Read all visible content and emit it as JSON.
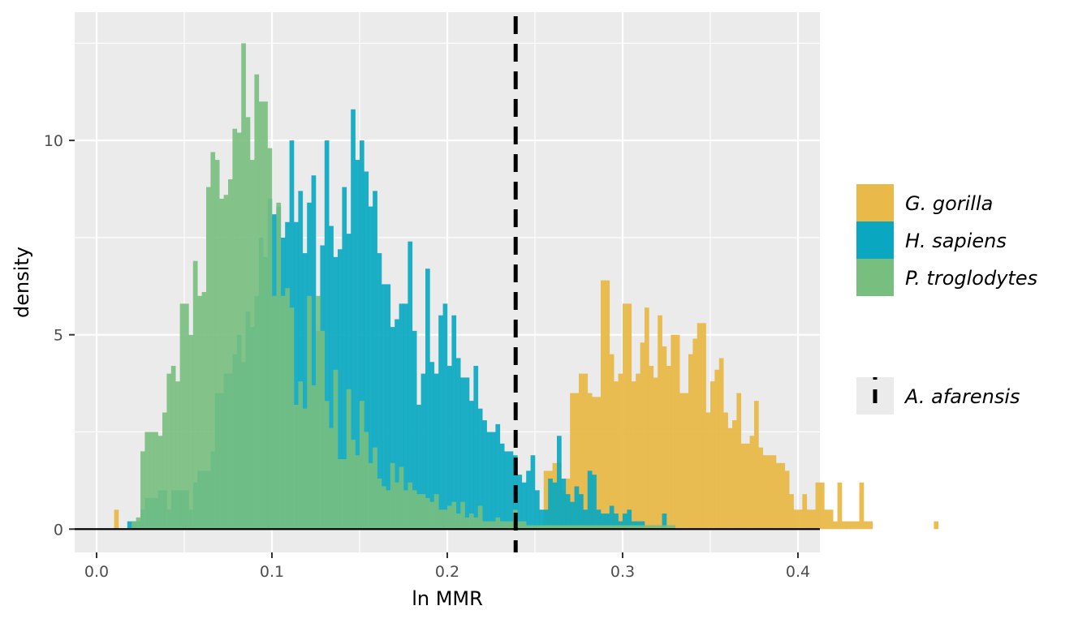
{
  "chart_data": {
    "type": "histogram",
    "xlabel": "ln MMR",
    "ylabel": "density",
    "xlim": [
      -0.0125,
      0.4125
    ],
    "ylim": [
      -0.6,
      13.3
    ],
    "x_ticks": [
      0.0,
      0.1,
      0.2,
      0.3,
      0.4
    ],
    "x_tick_labels": [
      "0.0",
      "0.1",
      "0.2",
      "0.3",
      "0.4"
    ],
    "y_ticks": [
      0,
      5,
      10
    ],
    "y_tick_labels": [
      "0",
      "5",
      "10"
    ],
    "grid": true,
    "legend_position": "right",
    "bin_start": 0.01,
    "bin_width": 0.0025,
    "series": [
      {
        "name": "G. gorilla",
        "color": "#E9B949",
        "values": [
          0.5,
          0,
          0,
          0,
          0,
          0,
          0,
          0,
          0,
          0,
          0,
          0,
          0,
          0,
          0,
          0,
          0,
          0,
          0,
          0,
          0,
          0,
          0,
          0,
          0,
          0,
          0,
          0,
          0,
          0,
          0,
          0,
          0,
          0,
          0,
          0,
          0,
          0,
          0,
          0,
          0,
          0,
          0,
          0,
          0,
          0,
          0,
          0,
          0,
          0,
          0,
          0,
          0,
          0,
          0,
          0,
          0,
          0,
          0,
          0,
          0,
          0,
          0,
          0,
          0,
          0,
          0,
          0,
          0,
          0,
          0,
          0,
          0,
          0,
          0,
          0,
          0,
          0,
          0,
          0,
          0,
          0,
          0,
          0,
          0,
          0,
          0,
          0,
          0,
          0,
          0,
          0,
          0,
          0,
          0,
          0,
          0,
          0,
          1.5,
          1.5,
          1.7,
          1.7,
          1,
          1.3,
          3.5,
          3.5,
          4,
          4,
          3.5,
          3.4,
          3.4,
          6.4,
          6.4,
          4.5,
          3.8,
          4,
          5.8,
          5.8,
          3.8,
          4,
          4.8,
          5.7,
          4.2,
          3.9,
          5.5,
          4.7,
          4.2,
          5,
          5,
          3.5,
          3.5,
          4.5,
          4.9,
          5.3,
          5.3,
          3,
          3.8,
          4.1,
          4.4,
          3,
          2.6,
          2.8,
          3.5,
          2.2,
          2.2,
          2.4,
          3.3,
          2.1,
          1.9,
          1.9,
          1.9,
          1.7,
          1.7,
          1.5,
          0.9,
          0.5,
          0.5,
          0.9,
          0.5,
          0.5,
          1.2,
          1.2,
          0.5,
          0.5,
          0.2,
          1.2,
          0.2,
          0.2,
          0.2,
          0.2,
          1.2,
          0.2,
          0.2,
          0,
          0,
          0,
          0,
          0,
          0,
          0,
          0,
          0,
          0,
          0,
          0,
          0,
          0,
          0.2
        ]
      },
      {
        "name": "H. sapiens",
        "color": "#0AA8C0",
        "values": [
          0,
          0,
          0,
          0.2,
          0.2,
          0.2,
          0.5,
          0.8,
          0.8,
          0.8,
          1,
          1,
          0.5,
          1,
          1,
          1,
          1,
          0.5,
          1.2,
          1.5,
          1.5,
          1.5,
          2,
          3.5,
          3.5,
          4,
          4,
          4.5,
          5,
          4.3,
          5.6,
          5.2,
          6,
          7.5,
          7,
          8.5,
          8.1,
          8.3,
          7.5,
          7.9,
          10,
          7.9,
          8.7,
          7.1,
          8.4,
          9.1,
          5.1,
          7.3,
          10,
          7.8,
          7,
          7.2,
          8.8,
          7.6,
          10.8,
          9.5,
          10,
          9.2,
          8.3,
          8.7,
          7.1,
          6.3,
          6.3,
          5.2,
          5.4,
          5.8,
          5.8,
          7.4,
          5.1,
          3.2,
          4,
          6.7,
          4.3,
          4,
          5.5,
          5.8,
          4.2,
          5.5,
          4.4,
          3.9,
          3.9,
          3.3,
          4.2,
          3.1,
          2.8,
          2.5,
          2.5,
          2.7,
          2.2,
          2,
          2,
          1.9,
          1.4,
          1.2,
          1.5,
          1.9,
          1,
          0.5,
          0.5,
          1.3,
          1.2,
          2.4,
          1.3,
          0.9,
          0.7,
          1.1,
          0.9,
          0.5,
          1.5,
          1.4,
          0.5,
          0.4,
          0.4,
          0.6,
          0.4,
          0.2,
          0.4,
          0.5,
          0.2,
          0.2,
          0.2,
          0,
          0,
          0,
          0,
          0.4
        ]
      },
      {
        "name": "P. troglodytes",
        "color": "#78BF7F",
        "values": [
          0,
          0,
          0,
          0,
          0.2,
          0.3,
          2,
          2.5,
          2.5,
          2.5,
          2.4,
          3,
          4,
          4.2,
          3.8,
          5.8,
          5.8,
          5,
          6.9,
          6,
          6.1,
          8.8,
          9.7,
          9.5,
          8.5,
          8.6,
          9,
          10.3,
          10.2,
          12.5,
          10.6,
          9.5,
          11.7,
          11,
          11,
          9.8,
          6,
          8.4,
          6,
          6.2,
          5.7,
          3.2,
          3.8,
          3.1,
          6,
          3.7,
          6,
          5.1,
          3.3,
          2.6,
          4.1,
          1.8,
          1.8,
          3.6,
          2.3,
          1.9,
          3.3,
          2.5,
          1.7,
          2.1,
          1.3,
          1.1,
          1,
          1.7,
          1.2,
          1.6,
          1,
          1.2,
          1,
          0.9,
          0.9,
          0.8,
          0.7,
          0.9,
          0.5,
          0.5,
          0.6,
          0.7,
          0.4,
          0.7,
          0.3,
          0.4,
          0.3,
          0.6,
          0.2,
          0.2,
          0.2,
          0.3,
          0.2,
          0.2,
          0.2,
          0.5,
          0.2,
          0.2,
          0.1,
          0.1,
          0.1,
          0.1,
          0.1,
          0.1,
          0.1,
          0.1,
          0.1,
          0.1,
          0.1,
          0.1,
          0.1,
          0.1,
          0.1,
          0.1,
          0.1,
          0.1,
          0.1,
          0.1,
          0.1,
          0.1,
          0.1,
          0.1,
          0.1,
          0.1,
          0.1,
          0.1,
          0.1,
          0.1,
          0.1,
          0.1,
          0.1,
          0.1
        ]
      }
    ],
    "reference_line": {
      "name": "A. afarensis",
      "x": 0.239,
      "color": "#000000",
      "style": "dashed"
    }
  }
}
